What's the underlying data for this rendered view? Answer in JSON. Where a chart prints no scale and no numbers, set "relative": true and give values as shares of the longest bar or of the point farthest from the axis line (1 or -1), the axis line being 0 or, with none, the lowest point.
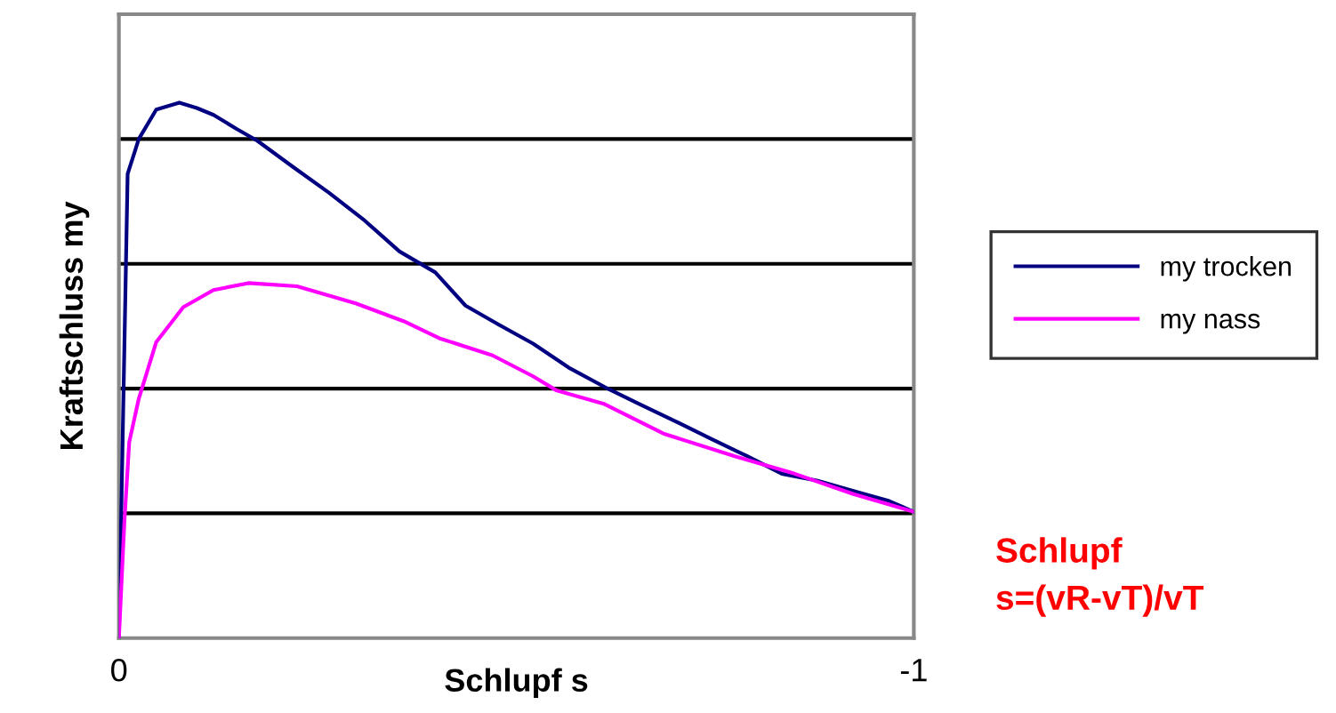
{
  "chart_data": {
    "type": "line",
    "relative": true,
    "xlabel": "Schlupf s",
    "ylabel": "Kraftschluss my",
    "xlim": [
      0,
      -1
    ],
    "xticks": [
      0,
      -1
    ],
    "legend": "right",
    "marker": "none",
    "line_style": "solid",
    "ref_lines": [
      {
        "axis": "y",
        "value": 0.233,
        "color": "#000000"
      },
      {
        "axis": "y",
        "value": 0.466,
        "color": "#000000"
      },
      {
        "axis": "y",
        "value": 0.699,
        "color": "#000000"
      },
      {
        "axis": "y",
        "value": 0.932,
        "color": "#000000"
      }
    ],
    "annotations": [
      "Schlupf\ns=(vR-vT)/vT"
    ],
    "series": [
      {
        "name": "my trocken",
        "color": "#000080",
        "x": [
          0,
          -0.011,
          -0.025,
          -0.047,
          -0.076,
          -0.098,
          -0.119,
          -0.148,
          -0.174,
          -0.219,
          -0.264,
          -0.309,
          -0.353,
          -0.398,
          -0.436,
          -0.477,
          -0.521,
          -0.566,
          -0.611,
          -0.655,
          -0.7,
          -0.745,
          -0.79,
          -0.834,
          -0.879,
          -0.924,
          -0.969,
          -1
        ],
        "values": [
          0,
          0.867,
          0.932,
          0.987,
          1.0,
          0.99,
          0.977,
          0.951,
          0.929,
          0.88,
          0.832,
          0.78,
          0.722,
          0.683,
          0.621,
          0.586,
          0.55,
          0.505,
          0.469,
          0.437,
          0.405,
          0.372,
          0.34,
          0.307,
          0.294,
          0.275,
          0.256,
          0.236
        ]
      },
      {
        "name": "my nass",
        "color": "#ff00ff",
        "x": [
          0,
          -0.007,
          -0.013,
          -0.025,
          -0.047,
          -0.081,
          -0.119,
          -0.163,
          -0.224,
          -0.298,
          -0.358,
          -0.403,
          -0.47,
          -0.521,
          -0.55,
          -0.611,
          -0.685,
          -0.774,
          -0.85,
          -0.924,
          -1
        ],
        "values": [
          0,
          0.22,
          0.366,
          0.447,
          0.553,
          0.618,
          0.65,
          0.663,
          0.657,
          0.625,
          0.592,
          0.56,
          0.528,
          0.489,
          0.463,
          0.437,
          0.382,
          0.34,
          0.307,
          0.269,
          0.236
        ]
      }
    ]
  }
}
